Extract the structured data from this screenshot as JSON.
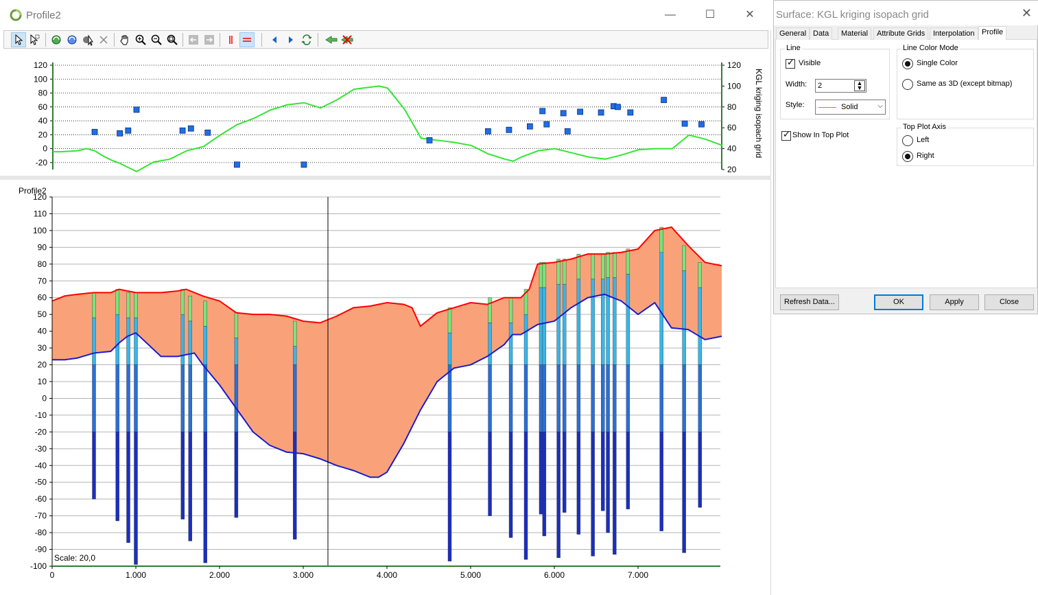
{
  "window": {
    "title": "Profile2",
    "controls": {
      "minimize": "—",
      "maximize": "☐",
      "close": "✕"
    }
  },
  "toolbar": {
    "buttons": [
      {
        "name": "select-arrow-icon",
        "active": true
      },
      {
        "name": "select-multi-icon",
        "active": false
      },
      {
        "name": "refresh-icon",
        "active": false
      },
      {
        "name": "refresh-all-icon",
        "active": false
      },
      {
        "name": "settings-pointer-icon",
        "active": false
      },
      {
        "name": "delete-icon",
        "active": false
      },
      {
        "name": "pan-hand-icon",
        "active": false
      },
      {
        "name": "zoom-in-icon",
        "active": false
      },
      {
        "name": "zoom-out-icon",
        "active": false
      },
      {
        "name": "zoom-extent-icon",
        "active": false
      },
      {
        "name": "back-icon",
        "active": false
      },
      {
        "name": "forward-icon",
        "active": false
      },
      {
        "name": "vertical-line-icon",
        "active": false
      },
      {
        "name": "horizontal-lines-icon",
        "active": true
      },
      {
        "name": "previous-icon",
        "active": false
      },
      {
        "name": "next-icon",
        "active": false
      },
      {
        "name": "swap-icon",
        "active": false
      },
      {
        "name": "export-icon",
        "active": false
      },
      {
        "name": "remove-export-icon",
        "active": false
      }
    ]
  },
  "colors": {
    "isopach_fill": "#f9a27a",
    "top_surface": "#ff0000",
    "base_surface": "#1a1acc",
    "top_plot_line": "#32e632",
    "marker": "#1f6fe6"
  },
  "top_plot": {
    "left_ticks": [
      "120",
      "100",
      "80",
      "60",
      "40",
      "20",
      "0",
      "-20"
    ],
    "right_ticks": [
      "120",
      "100",
      "80",
      "60",
      "40",
      "20"
    ],
    "right_axis_label": "KGL kriging isopach grid"
  },
  "profile_plot": {
    "title": "Profile2",
    "y_ticks": [
      "120",
      "110",
      "100",
      "90",
      "80",
      "70",
      "60",
      "50",
      "40",
      "30",
      "20",
      "10",
      "0",
      "-10",
      "-20",
      "-30",
      "-40",
      "-50",
      "-60",
      "-70",
      "-80",
      "-90",
      "-100"
    ],
    "x_ticks": [
      "0",
      "1.000",
      "2.000",
      "3.000",
      "4.000",
      "5.000",
      "6.000",
      "7.000"
    ],
    "scale_label": "Scale: 20,0"
  },
  "chart_data": {
    "type": "line",
    "x_range": [
      0,
      8000
    ],
    "y_range": [
      -100,
      120
    ],
    "series": [],
    "top_surface": {
      "x": [
        0,
        150,
        300,
        500,
        700,
        800,
        1000,
        1300,
        1500,
        1600,
        1800,
        2000,
        2200,
        2400,
        2600,
        2800,
        3000,
        3200,
        3400,
        3600,
        3800,
        4000,
        4200,
        4300,
        4400,
        4600,
        4800,
        5000,
        5200,
        5400,
        5600,
        5700,
        5800,
        6000,
        6200,
        6400,
        6600,
        6800,
        7000,
        7200,
        7400,
        7600,
        7800,
        8000
      ],
      "y": [
        58,
        61,
        62,
        63,
        63,
        65,
        63,
        63,
        64,
        65,
        61,
        58,
        51,
        50,
        50,
        49,
        46,
        45,
        49,
        54,
        55,
        57,
        56,
        54,
        43,
        51,
        54,
        57,
        56,
        60,
        60,
        65,
        80,
        81,
        83,
        86,
        86,
        87,
        89,
        100,
        102,
        91,
        81,
        79
      ]
    },
    "base_surface": {
      "x": [
        0,
        150,
        300,
        500,
        700,
        800,
        900,
        1000,
        1300,
        1500,
        1600,
        1700,
        1800,
        2000,
        2200,
        2400,
        2600,
        2800,
        3000,
        3200,
        3400,
        3600,
        3800,
        3900,
        4000,
        4200,
        4400,
        4600,
        4800,
        5000,
        5200,
        5400,
        5500,
        5600,
        5800,
        6000,
        6200,
        6400,
        6600,
        6800,
        7000,
        7200,
        7400,
        7600,
        7800,
        8000
      ],
      "y": [
        23,
        23,
        24,
        27,
        28,
        33,
        37,
        39,
        25,
        25,
        26,
        27,
        20,
        8,
        -6,
        -20,
        -28,
        -32,
        -33,
        -36,
        -40,
        -43,
        -47,
        -47,
        -44,
        -27,
        -7,
        10,
        18,
        20,
        25,
        32,
        38,
        38,
        44,
        46,
        54,
        60,
        62,
        58,
        50,
        57,
        42,
        41,
        35,
        37
      ]
    },
    "top_plot_line": {
      "x": [
        0,
        100,
        300,
        400,
        500,
        600,
        700,
        800,
        900,
        1000,
        1200,
        1400,
        1600,
        1800,
        2000,
        2200,
        2400,
        2600,
        2800,
        3000,
        3200,
        3400,
        3600,
        3800,
        3900,
        4000,
        4200,
        4400,
        4600,
        4800,
        5000,
        5200,
        5400,
        5500,
        5600,
        5800,
        6000,
        6200,
        6400,
        6600,
        6800,
        7000,
        7200,
        7400,
        7600,
        7800,
        8000
      ],
      "y": [
        37,
        37,
        38,
        40,
        38,
        33,
        29,
        26,
        22,
        18,
        27,
        30,
        38,
        42,
        53,
        63,
        69,
        77,
        82,
        84,
        79,
        87,
        97,
        99,
        100,
        98,
        78,
        50,
        48,
        46,
        43,
        35,
        30,
        28,
        32,
        38,
        40,
        36,
        32,
        30,
        34,
        39,
        40,
        40,
        53,
        49,
        43
      ]
    },
    "top_plot_markers": {
      "x": [
        500,
        800,
        900,
        1000,
        1550,
        1650,
        1850,
        2200,
        3000,
        4500,
        5200,
        5450,
        5700,
        5850,
        5900,
        6100,
        6150,
        6300,
        6550,
        6700,
        6750,
        6900,
        7300,
        7550,
        7750
      ],
      "y": [
        24,
        22,
        26,
        56,
        26,
        29,
        23,
        -23,
        -23,
        12,
        25,
        27,
        32,
        54,
        35,
        51,
        25,
        53,
        52,
        61,
        60,
        52,
        70,
        36,
        35
      ]
    },
    "boreholes_x": [
      500,
      780,
      910,
      1000,
      1560,
      1650,
      1830,
      2200,
      2900,
      4750,
      5230,
      5480,
      5660,
      5840,
      5880,
      6050,
      6120,
      6290,
      6460,
      6580,
      6640,
      6720,
      6880,
      7280,
      7550,
      7740
    ]
  },
  "dialog": {
    "title": "Surface: KGL kriging isopach grid",
    "close": "✕",
    "tabs": [
      "General",
      "Data",
      "Material",
      "Attribute Grids",
      "Interpolation",
      "Profile"
    ],
    "active_tab": "Profile",
    "line_group": {
      "title": "Line",
      "visible_label": "Visible",
      "visible_checked": true,
      "width_label": "Width:",
      "width_value": "2",
      "style_label": "Style:",
      "style_value": "Solid"
    },
    "show_in_top_plot": {
      "label": "Show In Top Plot",
      "checked": true
    },
    "line_color_mode": {
      "title": "Line Color Mode",
      "options": [
        "Single Color",
        "Same as 3D (except bitmap)"
      ],
      "selected": "Single Color"
    },
    "top_plot_axis": {
      "title": "Top Plot Axis",
      "options": [
        "Left",
        "Right"
      ],
      "selected": "Right"
    },
    "buttons": {
      "refresh": "Refresh Data...",
      "ok": "OK",
      "apply": "Apply",
      "close": "Close"
    }
  }
}
